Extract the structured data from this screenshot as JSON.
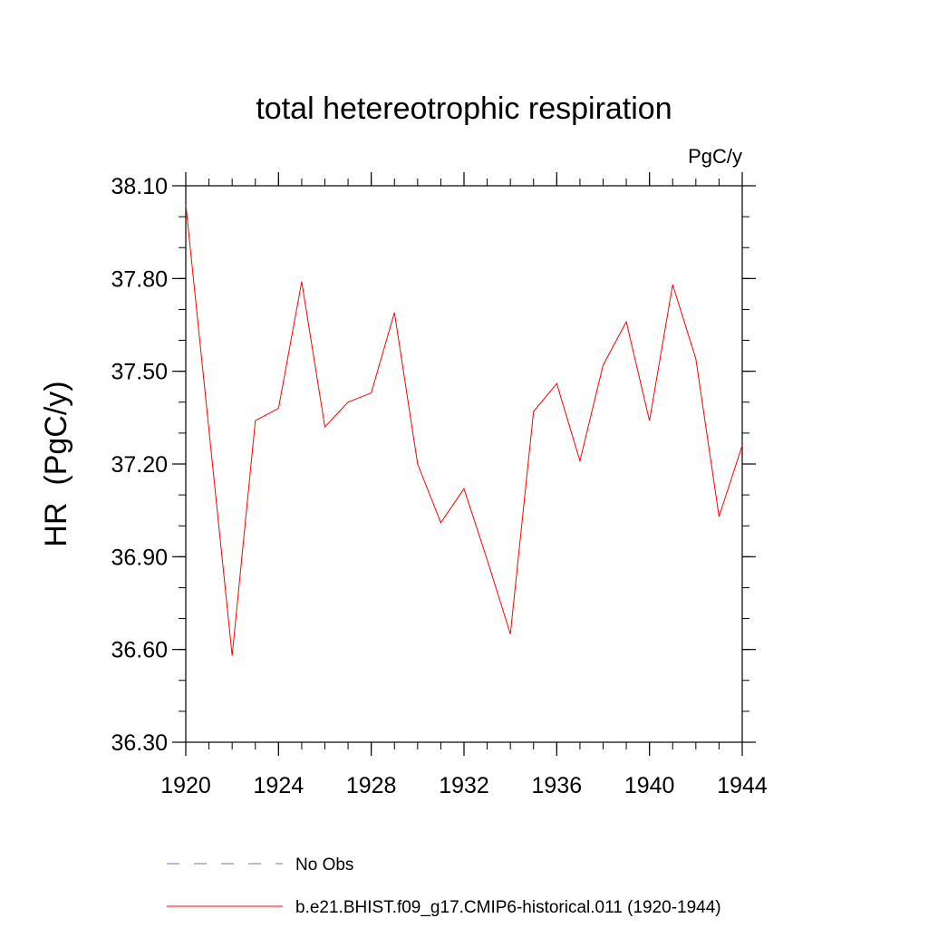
{
  "chart_data": {
    "type": "line",
    "title": "total hetereotrophic respiration",
    "units_label": "PgC/y",
    "ylabel": "HR  (PgC/y)",
    "xlabel": "",
    "xlim": [
      1920,
      1944
    ],
    "ylim": [
      36.3,
      38.1
    ],
    "x_ticks": [
      1920,
      1924,
      1928,
      1932,
      1936,
      1940,
      1944
    ],
    "x_tick_labels": [
      "1920",
      "1924",
      "1928",
      "1932",
      "1936",
      "1940",
      "1944"
    ],
    "y_ticks": [
      36.3,
      36.6,
      36.9,
      37.2,
      37.5,
      37.8,
      38.1
    ],
    "y_tick_labels": [
      "36.30",
      "36.60",
      "36.90",
      "37.20",
      "37.50",
      "37.80",
      "38.10"
    ],
    "y_minor_step": 0.1,
    "x_minor_step": 1,
    "grid": false,
    "legend_position": "bottom",
    "series": [
      {
        "name": "b.e21.BHIST.f09_g17.CMIP6-historical.011 (1920-1944)",
        "color": "#ff0000",
        "style": "solid",
        "x": [
          1920,
          1921,
          1922,
          1923,
          1924,
          1925,
          1926,
          1927,
          1928,
          1929,
          1930,
          1931,
          1932,
          1933,
          1934,
          1935,
          1936,
          1937,
          1938,
          1939,
          1940,
          1941,
          1942,
          1943,
          1944
        ],
        "values": [
          38.04,
          37.31,
          36.58,
          37.34,
          37.38,
          37.79,
          37.32,
          37.4,
          37.43,
          37.69,
          37.2,
          37.01,
          37.12,
          36.89,
          36.65,
          37.37,
          37.46,
          37.21,
          37.52,
          37.66,
          37.34,
          37.78,
          37.54,
          37.03,
          37.26
        ]
      }
    ],
    "legend": [
      {
        "label": "No Obs",
        "color": "#7a6fb8",
        "style": "dashed"
      },
      {
        "label": "b.e21.BHIST.f09_g17.CMIP6-historical.011 (1920-1944)",
        "color": "#ff0000",
        "style": "solid"
      }
    ]
  }
}
